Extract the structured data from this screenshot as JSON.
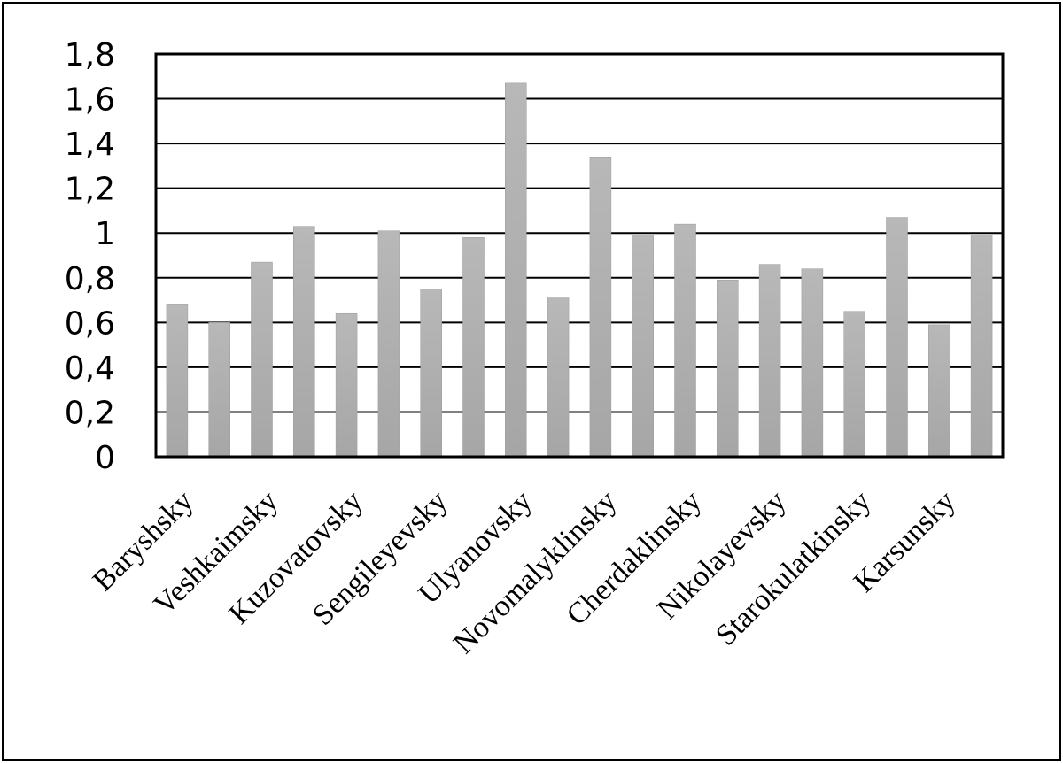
{
  "chart_data": {
    "type": "bar",
    "title": "",
    "xlabel": "",
    "ylabel": "",
    "ylim": [
      0,
      1.8
    ],
    "yticks": [
      "0",
      "0,2",
      "0,4",
      "0,6",
      "0,8",
      "1",
      "1,2",
      "1,4",
      "1,6",
      "1,8"
    ],
    "yticks_values": [
      0,
      0.2,
      0.4,
      0.6,
      0.8,
      1.0,
      1.2,
      1.4,
      1.6,
      1.8
    ],
    "grid": true,
    "categories": [
      "Baryshsky",
      "",
      "Veshkaimsky",
      "",
      "Kuzovatovsky",
      "",
      "Sengileyevsky",
      "",
      "Ulyanovsky",
      "",
      "Novomalyklinsky",
      "",
      "Cherdaklinsky",
      "",
      "Nikolayevsky",
      "",
      "Starokulatkinsky",
      "",
      "Karsunsky",
      ""
    ],
    "values": [
      0.68,
      0.6,
      0.87,
      1.03,
      0.64,
      1.01,
      0.75,
      0.98,
      1.67,
      0.71,
      1.34,
      0.99,
      1.04,
      0.79,
      0.86,
      0.84,
      0.65,
      1.07,
      0.59,
      0.99
    ],
    "bar_color": "#a6a6a6",
    "legend": "none"
  }
}
